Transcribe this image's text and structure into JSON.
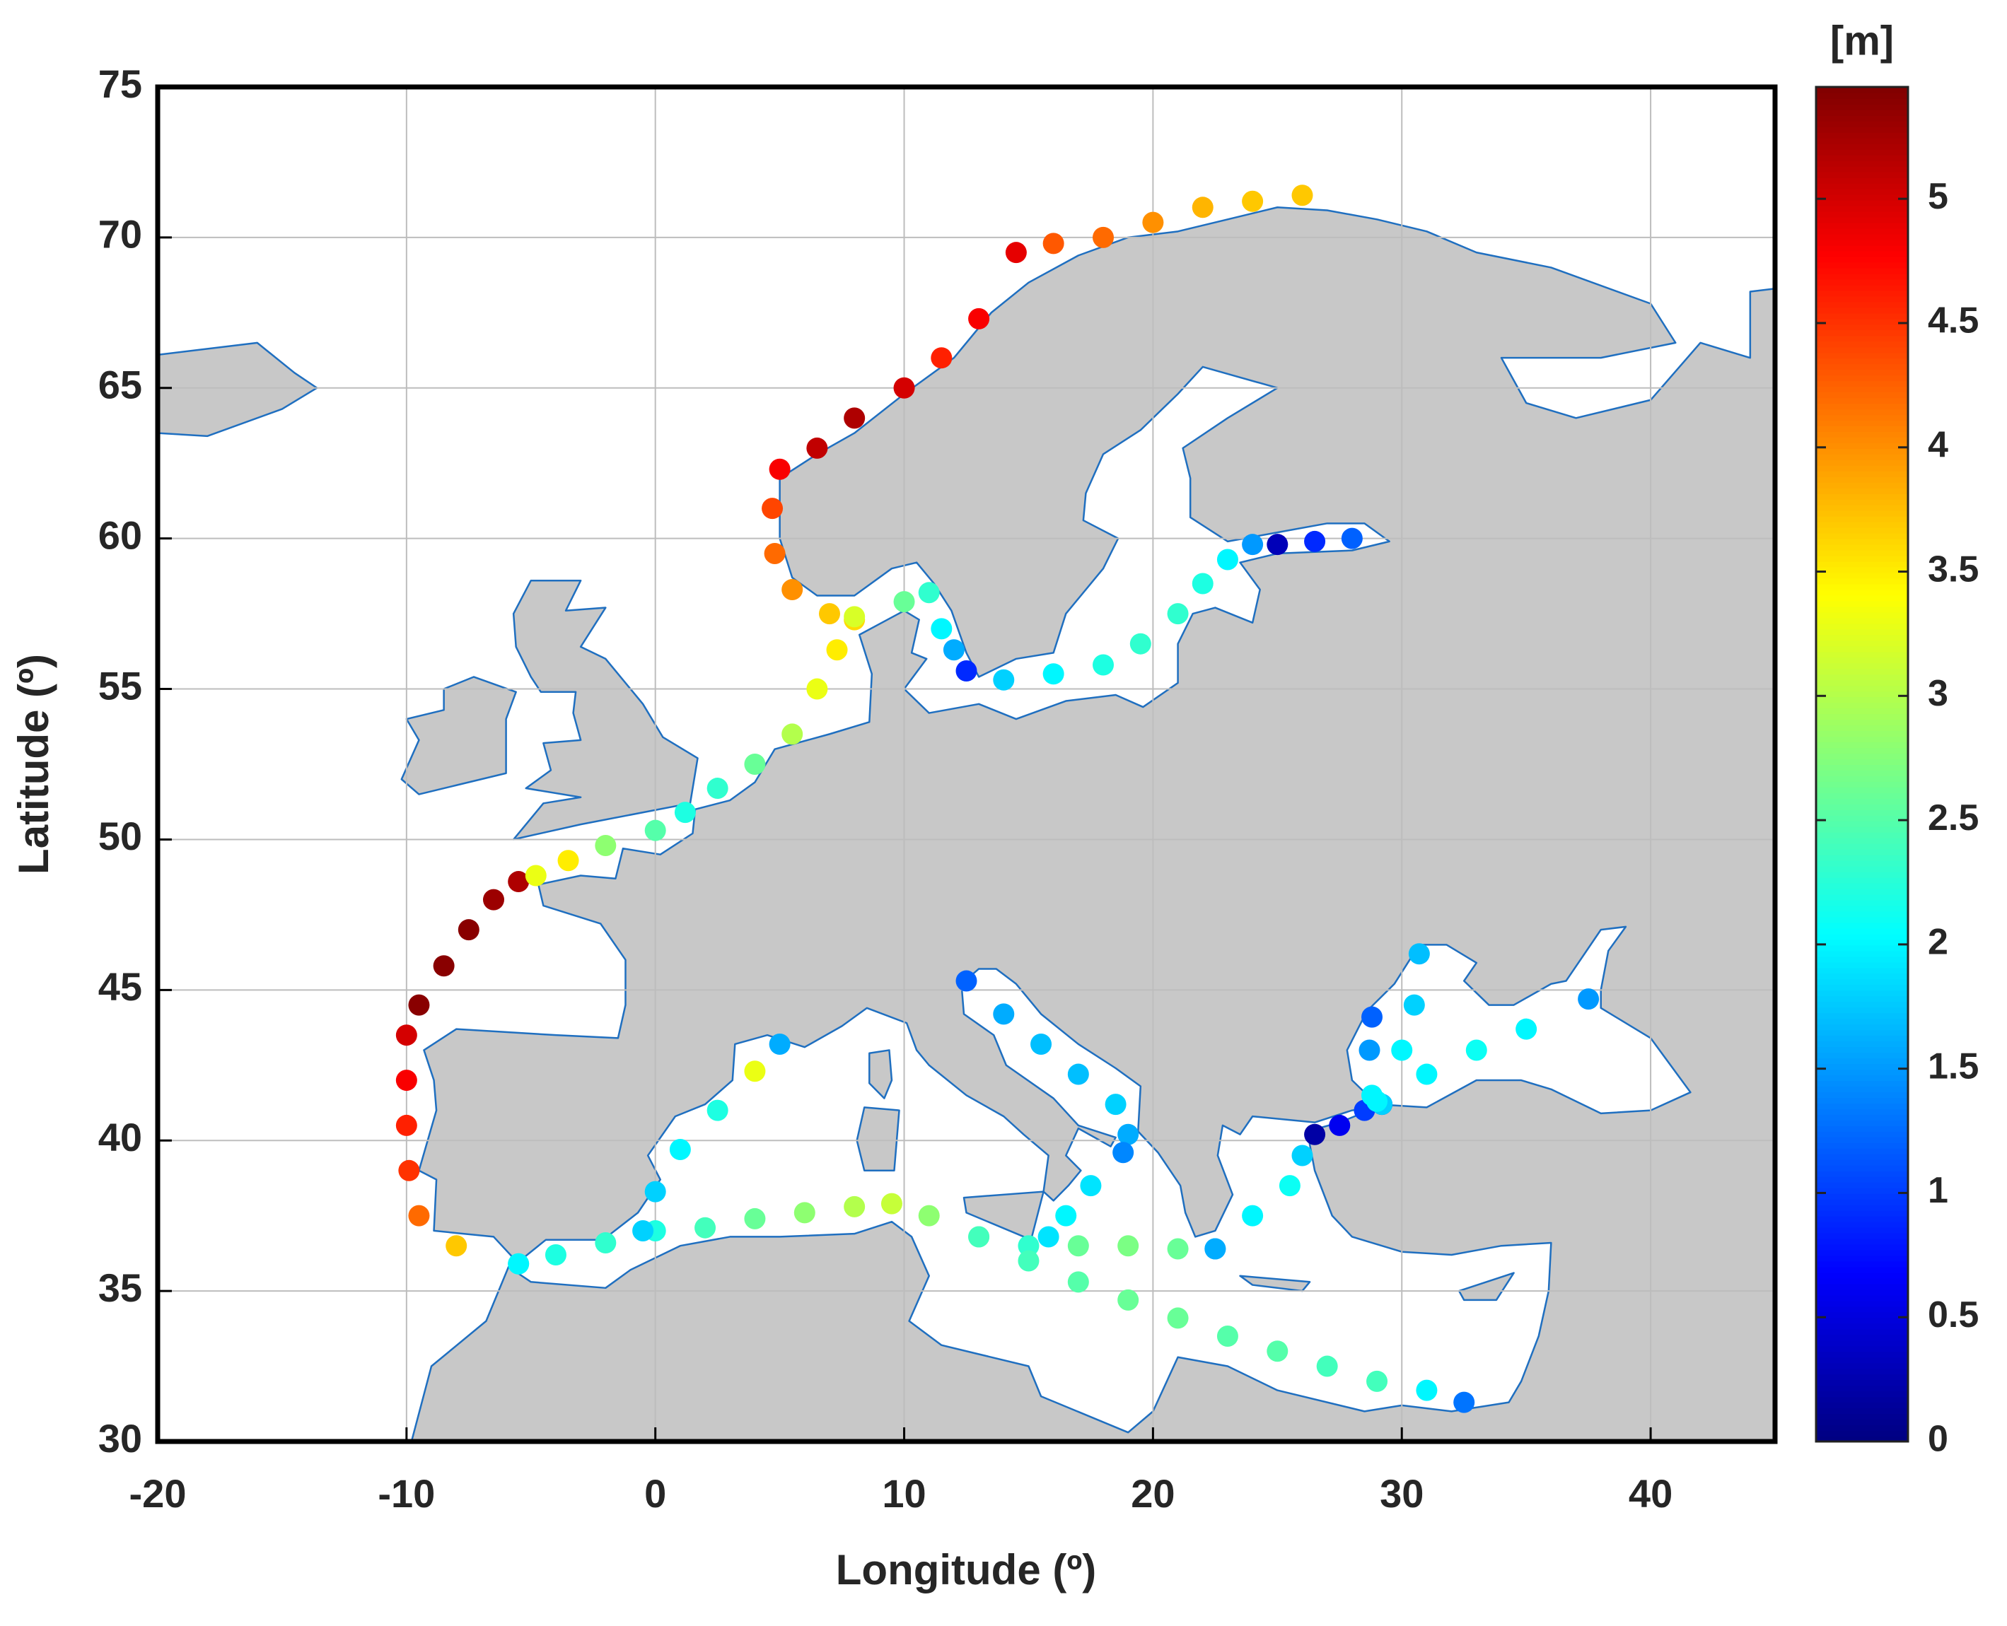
{
  "chart_data": {
    "type": "scatter",
    "xlabel": "Longitude (º)",
    "ylabel": "Latitude (º)",
    "xlim": [
      -20,
      45
    ],
    "ylim": [
      30,
      75
    ],
    "xticks": [
      -20,
      -10,
      0,
      10,
      20,
      30,
      40
    ],
    "yticks": [
      30,
      35,
      40,
      45,
      50,
      55,
      60,
      65,
      70,
      75
    ],
    "grid": true,
    "colormap": "jet",
    "colorbar": {
      "label": "[m]",
      "lim": [
        0,
        5.45
      ],
      "ticks": [
        0,
        0.5,
        1,
        1.5,
        2,
        2.5,
        3,
        3.5,
        4,
        4.5,
        5
      ]
    },
    "tracks": [
      {
        "x": [
          -5.5,
          -8,
          -9.5,
          -9.9,
          -10,
          -10,
          -10,
          -9.5,
          -8.5,
          -7.5,
          -6.5,
          -5.5,
          -4.8,
          -3.5,
          -2,
          0,
          1.2,
          2.5,
          4,
          5.5,
          6.5,
          7.3,
          8,
          7,
          5.5,
          4.8,
          4.7,
          5,
          6.5,
          8,
          10,
          11.5,
          13,
          14.5,
          16,
          18,
          20,
          22,
          24,
          26
        ],
        "y": [
          35.9,
          36.5,
          37.5,
          39,
          40.5,
          42,
          43.5,
          44.5,
          45.8,
          47,
          48,
          48.6,
          48.8,
          49.3,
          49.8,
          50.3,
          50.9,
          51.7,
          52.5,
          53.5,
          55,
          56.3,
          57.3,
          57.5,
          58.3,
          59.5,
          61,
          62.3,
          63,
          64,
          65,
          66,
          67.3,
          69.5,
          69.8,
          70,
          70.5,
          71,
          71.2,
          71.4
        ],
        "values": [
          2.2,
          3.7,
          4.2,
          4.5,
          4.6,
          4.8,
          5.0,
          5.4,
          5.4,
          5.4,
          5.3,
          5.2,
          3.3,
          3.5,
          2.8,
          2.5,
          2.2,
          2.3,
          2.6,
          3.0,
          3.3,
          3.5,
          3.6,
          3.7,
          4.0,
          4.2,
          4.4,
          4.8,
          5.1,
          5.2,
          5.0,
          4.6,
          4.8,
          4.9,
          4.3,
          4.2,
          4.0,
          3.8,
          3.7,
          3.7
        ]
      },
      {
        "x": [
          8,
          10,
          11,
          11.5,
          12,
          12.5,
          14,
          16,
          18,
          19.5,
          21,
          22,
          23,
          24,
          25,
          26.5,
          28
        ],
        "y": [
          57.4,
          57.9,
          58.2,
          57,
          56.3,
          55.6,
          55.3,
          55.5,
          55.8,
          56.5,
          57.5,
          58.5,
          59.3,
          59.8,
          59.8,
          59.9,
          60
        ],
        "values": [
          3.2,
          2.6,
          2.3,
          2.0,
          1.6,
          0.9,
          1.8,
          2.0,
          2.2,
          2.3,
          2.3,
          2.2,
          2.0,
          1.5,
          0.3,
          0.9,
          1.2
        ]
      },
      {
        "x": [
          -5.5,
          -4,
          -2,
          0,
          2,
          4,
          6,
          8,
          9.5,
          11,
          13,
          15,
          17,
          19,
          21,
          22.5
        ],
        "y": [
          35.9,
          36.2,
          36.6,
          37,
          37.1,
          37.4,
          37.6,
          37.8,
          37.9,
          37.5,
          36.8,
          36.5,
          36.5,
          36.5,
          36.4,
          36.4
        ],
        "values": [
          2.0,
          2.2,
          2.3,
          2.2,
          2.4,
          2.6,
          2.8,
          3.0,
          3.1,
          2.8,
          2.4,
          2.3,
          2.6,
          2.7,
          2.6,
          1.6
        ]
      },
      {
        "x": [
          13,
          15,
          17,
          19,
          21,
          23,
          25,
          27,
          29,
          31,
          32.5
        ],
        "y": [
          36.8,
          36,
          35.3,
          34.7,
          34.1,
          33.5,
          33,
          32.5,
          32,
          31.7,
          31.3
        ],
        "values": [
          2.4,
          2.4,
          2.5,
          2.6,
          2.6,
          2.5,
          2.5,
          2.4,
          2.4,
          2.0,
          1.3
        ]
      },
      {
        "x": [
          5,
          4,
          2.5,
          1,
          0,
          -0.5
        ],
        "y": [
          43.2,
          42.3,
          41,
          39.7,
          38.3,
          37
        ],
        "values": [
          1.6,
          3.3,
          2.2,
          2.0,
          1.8,
          1.8
        ]
      },
      {
        "x": [
          12.5,
          14,
          15.5,
          17,
          18.5,
          19,
          18.8,
          17.5,
          16.5,
          15.8
        ],
        "y": [
          45.3,
          44.2,
          43.2,
          42.2,
          41.2,
          40.2,
          39.6,
          38.5,
          37.5,
          36.8
        ],
        "values": [
          1.2,
          1.6,
          1.7,
          1.7,
          1.8,
          1.6,
          1.4,
          1.9,
          2.0,
          1.9
        ]
      },
      {
        "x": [
          22.5,
          24,
          25.5,
          26,
          26.5,
          27.5,
          28.5,
          29.2
        ],
        "y": [
          36.4,
          37.5,
          38.5,
          39.5,
          40.2,
          40.5,
          41,
          41.2
        ],
        "values": [
          1.6,
          2.0,
          2.1,
          1.8,
          0.2,
          0.6,
          1.0,
          0.4
        ]
      },
      {
        "x": [
          29.2,
          31,
          33,
          35,
          37.5
        ],
        "y": [
          41.2,
          42.2,
          43,
          43.7,
          44.7
        ],
        "values": [
          1.8,
          2.0,
          2.1,
          2.0,
          1.5
        ]
      },
      {
        "x": [
          29,
          30,
          30.5,
          30.7
        ],
        "y": [
          41.3,
          43,
          44.5,
          46.2
        ],
        "values": [
          2.0,
          2.0,
          1.8,
          1.7
        ]
      },
      {
        "x": [
          28.8,
          28.7,
          28.8
        ],
        "y": [
          41.5,
          43,
          44.1
        ],
        "values": [
          2.0,
          1.5,
          1.2
        ]
      }
    ]
  }
}
